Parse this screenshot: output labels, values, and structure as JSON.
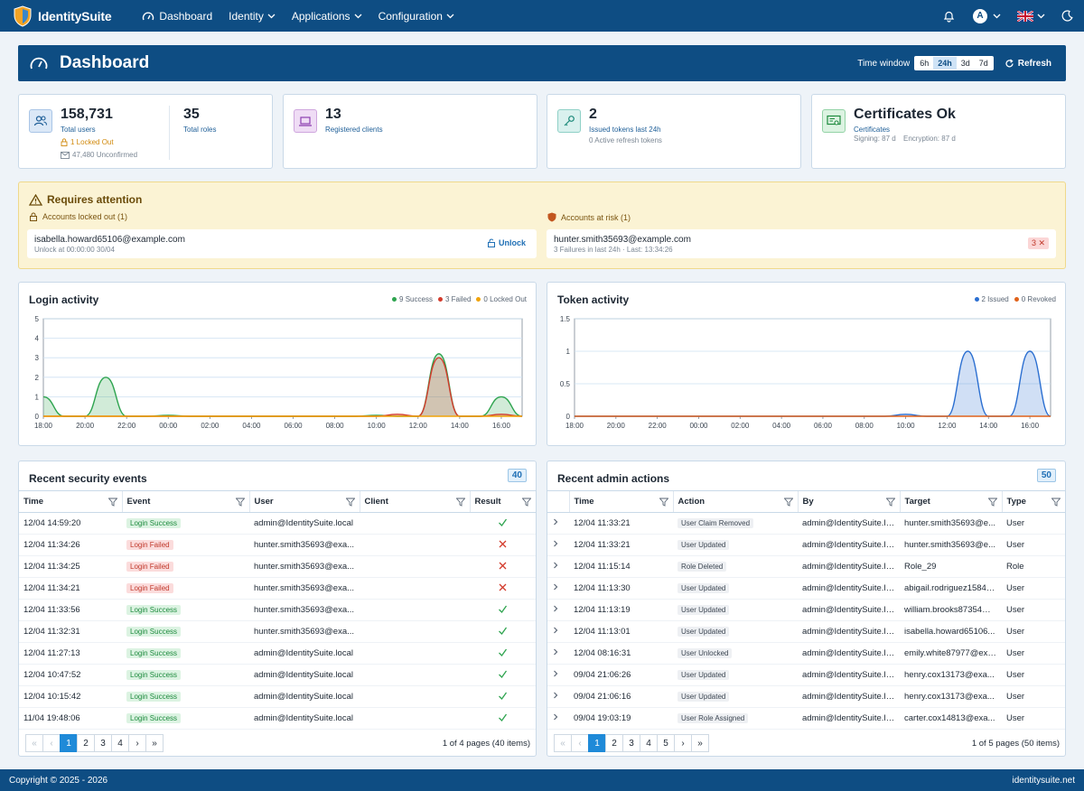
{
  "nav": {
    "brand": "IdentitySuite",
    "items": [
      "Dashboard",
      "Identity",
      "Applications",
      "Configuration"
    ],
    "avatar_letter": "A"
  },
  "header": {
    "title": "Dashboard",
    "time_window_label": "Time window",
    "time_options": [
      "6h",
      "24h",
      "3d",
      "7d"
    ],
    "time_selected": "24h",
    "refresh_label": "Refresh"
  },
  "stats": {
    "users": {
      "value": "158,731",
      "label": "Total users",
      "locked": "1 Locked Out",
      "unconfirmed": "47,480 Unconfirmed"
    },
    "roles": {
      "value": "35",
      "label": "Total roles"
    },
    "clients": {
      "value": "13",
      "label": "Registered clients"
    },
    "tokens": {
      "value": "2",
      "label": "Issued tokens last 24h",
      "sub": "0 Active refresh tokens"
    },
    "certs": {
      "value": "Certificates Ok",
      "label": "Certificates",
      "signing": "Signing: 87 d",
      "encryption": "Encryption: 87 d"
    }
  },
  "attention": {
    "title": "Requires attention",
    "locked_title": "Accounts locked out (1)",
    "locked_email": "isabella.howard65106@example.com",
    "locked_meta": "Unlock at 00:00:00 30/04",
    "unlock_label": "Unlock",
    "risk_title": "Accounts at risk (1)",
    "risk_email": "hunter.smith35693@example.com",
    "risk_meta": "3 Failures in last 24h · Last: 13:34:26",
    "risk_badge": "3 ✕"
  },
  "login_chart": {
    "title": "Login activity",
    "legend": [
      "9 Success",
      "3 Failed",
      "0 Locked Out"
    ]
  },
  "token_chart": {
    "title": "Token activity",
    "legend": [
      "2 Issued",
      "0 Revoked"
    ]
  },
  "chart_data": [
    {
      "type": "area",
      "title": "Login activity",
      "x": [
        "18:00",
        "19:00",
        "20:00",
        "21:00",
        "22:00",
        "23:00",
        "00:00",
        "01:00",
        "02:00",
        "03:00",
        "04:00",
        "05:00",
        "06:00",
        "07:00",
        "08:00",
        "09:00",
        "10:00",
        "11:00",
        "12:00",
        "13:00",
        "14:00",
        "15:00",
        "16:00",
        "17:00"
      ],
      "x_ticks": [
        "18:00",
        "20:00",
        "22:00",
        "00:00",
        "02:00",
        "04:00",
        "06:00",
        "08:00",
        "10:00",
        "12:00",
        "14:00",
        "16:00"
      ],
      "ylim": [
        0,
        5
      ],
      "y_ticks": [
        0,
        1,
        2,
        3,
        4,
        5
      ],
      "series": [
        {
          "name": "Success",
          "color": "#2ea44f",
          "values": [
            1,
            0,
            0,
            2,
            0,
            0,
            0.05,
            0,
            0,
            0,
            0,
            0,
            0,
            0,
            0,
            0,
            0.05,
            0,
            0,
            3.2,
            0,
            0,
            1,
            0
          ]
        },
        {
          "name": "Failed",
          "color": "#d33b2c",
          "values": [
            0,
            0,
            0,
            0,
            0,
            0,
            0,
            0,
            0,
            0,
            0,
            0,
            0,
            0,
            0,
            0,
            0,
            0.1,
            0,
            3,
            0,
            0,
            0.1,
            0
          ]
        },
        {
          "name": "Locked Out",
          "color": "#f0a30a",
          "values": [
            0,
            0,
            0,
            0,
            0,
            0,
            0,
            0,
            0,
            0,
            0,
            0,
            0,
            0,
            0,
            0,
            0,
            0,
            0,
            0,
            0,
            0,
            0,
            0
          ]
        }
      ]
    },
    {
      "type": "area",
      "title": "Token activity",
      "x": [
        "18:00",
        "19:00",
        "20:00",
        "21:00",
        "22:00",
        "23:00",
        "00:00",
        "01:00",
        "02:00",
        "03:00",
        "04:00",
        "05:00",
        "06:00",
        "07:00",
        "08:00",
        "09:00",
        "10:00",
        "11:00",
        "12:00",
        "13:00",
        "14:00",
        "15:00",
        "16:00",
        "17:00"
      ],
      "x_ticks": [
        "18:00",
        "20:00",
        "22:00",
        "00:00",
        "02:00",
        "04:00",
        "06:00",
        "08:00",
        "10:00",
        "12:00",
        "14:00",
        "16:00"
      ],
      "ylim": [
        0,
        1.5
      ],
      "y_ticks": [
        0,
        0.5,
        1,
        1.5
      ],
      "series": [
        {
          "name": "Issued",
          "color": "#2b6fd1",
          "values": [
            0,
            0,
            0,
            0,
            0,
            0,
            0,
            0,
            0,
            0,
            0,
            0,
            0,
            0,
            0,
            0,
            0.03,
            0,
            0,
            1,
            0,
            0,
            1,
            0
          ]
        },
        {
          "name": "Revoked",
          "color": "#e0621b",
          "values": [
            0,
            0,
            0,
            0,
            0,
            0,
            0,
            0,
            0,
            0,
            0,
            0,
            0,
            0,
            0,
            0,
            0,
            0,
            0,
            0,
            0,
            0,
            0,
            0
          ]
        }
      ]
    }
  ],
  "security": {
    "title": "Recent security events",
    "count": "40",
    "columns": [
      "Time",
      "Event",
      "User",
      "Client",
      "Result"
    ],
    "rows": [
      [
        "12/04 14:59:20",
        "Login Success",
        "admin@IdentitySuite.local",
        "",
        "ok"
      ],
      [
        "12/04 11:34:26",
        "Login Failed",
        "hunter.smith35693@exa...",
        "",
        "bad"
      ],
      [
        "12/04 11:34:25",
        "Login Failed",
        "hunter.smith35693@exa...",
        "",
        "bad"
      ],
      [
        "12/04 11:34:21",
        "Login Failed",
        "hunter.smith35693@exa...",
        "",
        "bad"
      ],
      [
        "12/04 11:33:56",
        "Login Success",
        "hunter.smith35693@exa...",
        "",
        "ok"
      ],
      [
        "12/04 11:32:31",
        "Login Success",
        "hunter.smith35693@exa...",
        "",
        "ok"
      ],
      [
        "12/04 11:27:13",
        "Login Success",
        "admin@IdentitySuite.local",
        "",
        "ok"
      ],
      [
        "12/04 10:47:52",
        "Login Success",
        "admin@IdentitySuite.local",
        "",
        "ok"
      ],
      [
        "12/04 10:15:42",
        "Login Success",
        "admin@IdentitySuite.local",
        "",
        "ok"
      ],
      [
        "11/04 19:48:06",
        "Login Success",
        "admin@IdentitySuite.local",
        "",
        "ok"
      ]
    ],
    "pages": [
      "1",
      "2",
      "3",
      "4"
    ],
    "page_info": "1 of 4 pages (40 items)"
  },
  "admin": {
    "title": "Recent admin actions",
    "count": "50",
    "columns": [
      "Time",
      "Action",
      "By",
      "Target",
      "Type"
    ],
    "rows": [
      [
        "12/04 11:33:21",
        "User Claim Removed",
        "admin@IdentitySuite.lo...",
        "hunter.smith35693@e...",
        "User"
      ],
      [
        "12/04 11:33:21",
        "User Updated",
        "admin@IdentitySuite.lo...",
        "hunter.smith35693@e...",
        "User"
      ],
      [
        "12/04 11:15:14",
        "Role Deleted",
        "admin@IdentitySuite.lo...",
        "Role_29",
        "Role"
      ],
      [
        "12/04 11:13:30",
        "User Updated",
        "admin@IdentitySuite.lo...",
        "abigail.rodriguez15847...",
        "User"
      ],
      [
        "12/04 11:13:19",
        "User Updated",
        "admin@IdentitySuite.lo...",
        "william.brooks87354@...",
        "User"
      ],
      [
        "12/04 11:13:01",
        "User Updated",
        "admin@IdentitySuite.lo...",
        "isabella.howard65106...",
        "User"
      ],
      [
        "12/04 08:16:31",
        "User Unlocked",
        "admin@IdentitySuite.lo...",
        "emily.white87977@exa...",
        "User"
      ],
      [
        "09/04 21:06:26",
        "User Updated",
        "admin@IdentitySuite.lo...",
        "henry.cox13173@exa...",
        "User"
      ],
      [
        "09/04 21:06:16",
        "User Updated",
        "admin@IdentitySuite.lo...",
        "henry.cox13173@exa...",
        "User"
      ],
      [
        "09/04 19:03:19",
        "User Role Assigned",
        "admin@IdentitySuite.lo...",
        "carter.cox14813@exa...",
        "User"
      ]
    ],
    "pages": [
      "1",
      "2",
      "3",
      "4",
      "5"
    ],
    "page_info": "1 of 5 pages (50 items)"
  },
  "footer": {
    "copyright": "Copyright © 2025 - 2026",
    "site": "identitysuite.net"
  },
  "colors": {
    "primary": "#0e4d83",
    "success": "#2ea44f",
    "failed": "#d33b2c",
    "locked": "#f0a30a",
    "issued": "#2b6fd1",
    "revoked": "#e0621b"
  }
}
